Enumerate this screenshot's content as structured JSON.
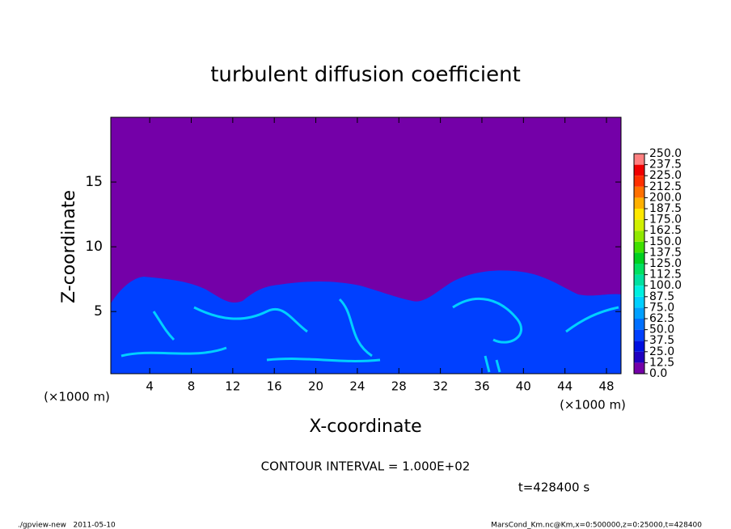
{
  "chart_data": {
    "type": "contour",
    "title": "turbulent diffusion coefficient",
    "xlabel": "X-coordinate",
    "ylabel": "Z-coordinate",
    "x_unit": "(×1000 m)",
    "xlim": [
      0.25,
      49.4
    ],
    "ylim": [
      0.2,
      20
    ],
    "xticks": [
      4,
      8,
      12,
      16,
      20,
      24,
      28,
      32,
      36,
      40,
      44,
      48
    ],
    "yticks": [
      5,
      10,
      15
    ],
    "colorbar": {
      "ticks": [
        {
          "value": 0,
          "label": "0.0"
        },
        {
          "value": 12.5,
          "label": "12.5"
        },
        {
          "value": 25,
          "label": "25.0"
        },
        {
          "value": 37.5,
          "label": "37.5"
        },
        {
          "value": 50,
          "label": "50.0"
        },
        {
          "value": 62.5,
          "label": "62.5"
        },
        {
          "value": 75,
          "label": "75.0"
        },
        {
          "value": 87.5,
          "label": "87.5"
        },
        {
          "value": 100,
          "label": "100.0"
        },
        {
          "value": 112.5,
          "label": "112.5"
        },
        {
          "value": 125,
          "label": "125.0"
        },
        {
          "value": 137.5,
          "label": "137.5"
        },
        {
          "value": 150,
          "label": "150.0"
        },
        {
          "value": 162.5,
          "label": "162.5"
        },
        {
          "value": 175,
          "label": "175.0"
        },
        {
          "value": 187.5,
          "label": "187.5"
        },
        {
          "value": 200,
          "label": "200.0"
        },
        {
          "value": 212.5,
          "label": "212.5"
        },
        {
          "value": 225,
          "label": "225.0"
        },
        {
          "value": 237.5,
          "label": "237.5"
        },
        {
          "value": 250,
          "label": "250.0"
        }
      ],
      "colors": [
        "#7400a8",
        "#2000c0",
        "#0010e0",
        "#0040ff",
        "#0070ff",
        "#00a0ff",
        "#00d0ff",
        "#00f0e0",
        "#00e0a0",
        "#00e060",
        "#00d020",
        "#40e000",
        "#90e800",
        "#d0f000",
        "#ffe800",
        "#ffb000",
        "#ff7000",
        "#ff3000",
        "#f00000",
        "#ff8080"
      ]
    },
    "annotations": [
      "CONTOUR INTERVAL = 1.000E+02",
      "t=428400 s"
    ],
    "footer_left": "./gpview-new   2011-05-10",
    "footer_right": "MarsCond_Km.nc@Km,x=0:500000,z=0:25000,t=428400"
  }
}
